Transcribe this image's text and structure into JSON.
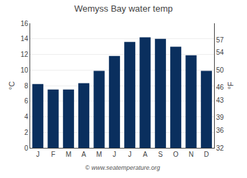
{
  "chart_data": {
    "type": "bar",
    "title": "Wemyss Bay water temp",
    "categories": [
      "J",
      "F",
      "M",
      "A",
      "M",
      "J",
      "J",
      "A",
      "S",
      "O",
      "N",
      "D"
    ],
    "values": [
      8.2,
      7.5,
      7.5,
      8.3,
      9.9,
      11.8,
      13.6,
      14.2,
      14.0,
      13.0,
      11.9,
      9.9
    ],
    "color": "#0a2f5e",
    "ylabel": "°C",
    "y2label": "°F",
    "ylim": [
      0,
      16
    ],
    "yticks": [
      0,
      2,
      4,
      6,
      8,
      10,
      12,
      14,
      16
    ],
    "y2lim": [
      32,
      60.8
    ],
    "y2ticks": [
      32,
      36,
      39,
      43,
      46,
      50,
      54,
      57
    ],
    "grid": true,
    "annotations": [
      "© www.seatemperature.org"
    ]
  }
}
